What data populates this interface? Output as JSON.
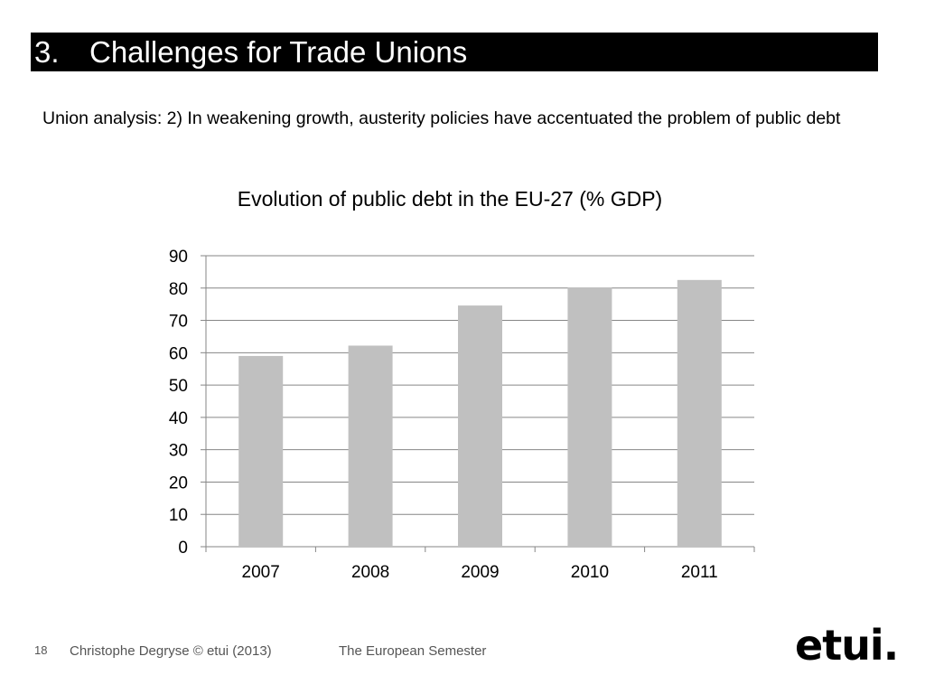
{
  "slide": {
    "section_number": "3.",
    "title": "Challenges for Trade Unions",
    "subtitle": "Union analysis: 2) In weakening growth, austerity policies have accentuated the problem of public debt"
  },
  "footer": {
    "page_number": "18",
    "author": "Christophe Degryse © etui (2013)",
    "topic": "The European Semester",
    "logo_text": "etui."
  },
  "chart_data": {
    "type": "bar",
    "title": "Evolution of public debt in the EU-27 (% GDP)",
    "categories": [
      "2007",
      "2008",
      "2009",
      "2010",
      "2011"
    ],
    "values": [
      59,
      62.2,
      74.6,
      80.1,
      82.5
    ],
    "xlabel": "",
    "ylabel": "",
    "ylim": [
      0,
      90
    ],
    "yticks": [
      0,
      10,
      20,
      30,
      40,
      50,
      60,
      70,
      80,
      90
    ],
    "grid": true,
    "legend": "none",
    "bar_color": "#c0c0c0",
    "grid_color": "#868686"
  }
}
